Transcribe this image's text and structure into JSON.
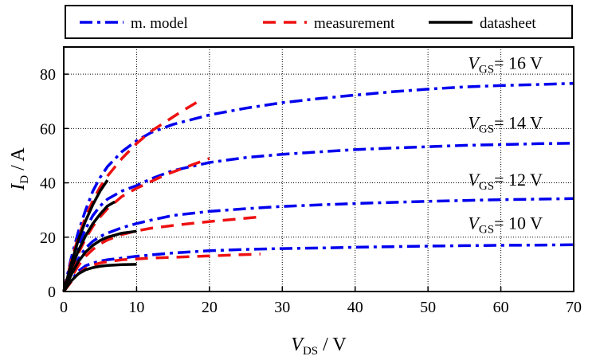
{
  "chart_data": {
    "type": "line",
    "title": "",
    "xlabel": {
      "main": "V",
      "sub": "DS",
      "unit": " / V"
    },
    "ylabel": {
      "main": "I",
      "sub": "D",
      "unit": " / A"
    },
    "xlim": [
      0,
      70
    ],
    "ylim": [
      0,
      90
    ],
    "xticks": [
      0,
      10,
      20,
      30,
      40,
      50,
      60,
      70
    ],
    "yticks": [
      0,
      20,
      40,
      60,
      80
    ],
    "grid": true,
    "legend_position": "top",
    "legend": [
      {
        "name": "m. model",
        "color": "#0000ee",
        "dash": "dashdot"
      },
      {
        "name": "measurement",
        "color": "#ee1111",
        "dash": "dashed"
      },
      {
        "name": "datasheet",
        "color": "#000000",
        "dash": "solid"
      }
    ],
    "annotations": [
      {
        "main": "V",
        "sub": "GS",
        "rest": "= 16 V",
        "x": 55.5,
        "y": 82
      },
      {
        "main": "V",
        "sub": "GS",
        "rest": "= 14 V",
        "x": 55.5,
        "y": 60
      },
      {
        "main": "V",
        "sub": "GS",
        "rest": "= 12 V",
        "x": 55.5,
        "y": 39
      },
      {
        "main": "V",
        "sub": "GS",
        "rest": "= 10 V",
        "x": 55.5,
        "y": 23
      }
    ],
    "series": [
      {
        "name": "m. model",
        "group": "16 V",
        "kind": "model",
        "x": [
          0,
          1,
          2,
          3,
          4,
          5,
          6,
          8,
          10,
          12,
          15,
          20,
          25,
          30,
          35,
          40,
          45,
          50,
          55,
          60,
          65,
          70
        ],
        "y": [
          0,
          12,
          22,
          30,
          37,
          42,
          46,
          51.5,
          55.5,
          58.5,
          61.5,
          65,
          67.5,
          69.5,
          71,
          72.3,
          73.5,
          74.5,
          75.3,
          75.8,
          76.2,
          76.6
        ]
      },
      {
        "name": "m. model",
        "group": "14 V",
        "kind": "model",
        "x": [
          0,
          1,
          2,
          3,
          4,
          5,
          6,
          8,
          10,
          12,
          15,
          20,
          25,
          30,
          35,
          40,
          45,
          50,
          55,
          60,
          65,
          70
        ],
        "y": [
          0,
          9,
          17,
          23,
          28,
          31.5,
          34,
          37,
          39,
          41.5,
          44.5,
          47.5,
          49.3,
          50.5,
          51.4,
          52.2,
          52.8,
          53.3,
          53.8,
          54.1,
          54.4,
          54.6
        ]
      },
      {
        "name": "m. model",
        "group": "12 V",
        "kind": "model",
        "x": [
          0,
          1,
          2,
          3,
          4,
          5,
          6,
          8,
          10,
          12,
          15,
          20,
          25,
          30,
          35,
          40,
          45,
          50,
          55,
          60,
          65,
          70
        ],
        "y": [
          0,
          6.5,
          12,
          16,
          18.5,
          20.3,
          21.5,
          23.5,
          25,
          26.3,
          28,
          29.5,
          30.5,
          31.3,
          31.9,
          32.4,
          32.8,
          33.2,
          33.5,
          33.8,
          34,
          34.2
        ]
      },
      {
        "name": "m. model",
        "group": "10 V",
        "kind": "model",
        "x": [
          0,
          1,
          2,
          3,
          4,
          5,
          6,
          8,
          10,
          15,
          20,
          25,
          30,
          35,
          40,
          45,
          50,
          55,
          60,
          65,
          70
        ],
        "y": [
          0,
          4,
          7.5,
          9.5,
          10.5,
          11.2,
          11.7,
          12.3,
          13,
          14.2,
          15,
          15.5,
          15.8,
          16,
          16.3,
          16.5,
          16.7,
          16.9,
          17,
          17.1,
          17.2
        ]
      },
      {
        "name": "measurement",
        "group": "16 V",
        "kind": "meas",
        "x": [
          0,
          1,
          2,
          3,
          4,
          5,
          6,
          8,
          10,
          12,
          14,
          16,
          18.5
        ],
        "y": [
          0,
          11,
          20,
          27.5,
          33.5,
          38.5,
          42.5,
          49,
          54.5,
          59,
          62.5,
          66,
          70
        ]
      },
      {
        "name": "measurement",
        "group": "14 V",
        "kind": "meas",
        "x": [
          0,
          1,
          2,
          3,
          4,
          5,
          6,
          8,
          10,
          12,
          14,
          16,
          18,
          20
        ],
        "y": [
          0,
          7.5,
          14,
          19.5,
          24,
          27.5,
          30.5,
          35,
          38,
          40.5,
          43,
          45,
          47,
          49
        ]
      },
      {
        "name": "measurement",
        "group": "12 V",
        "kind": "meas",
        "x": [
          0,
          1,
          2,
          3,
          4,
          5,
          6,
          8,
          10,
          12,
          15,
          18,
          21,
          24,
          27
        ],
        "y": [
          0,
          5,
          9.5,
          13,
          15.5,
          17.5,
          19,
          21,
          22.3,
          23.3,
          24.3,
          25.2,
          26,
          26.7,
          27.5
        ]
      },
      {
        "name": "measurement",
        "group": "10 V",
        "kind": "meas",
        "x": [
          0,
          1,
          2,
          3,
          4,
          5,
          6,
          8,
          10,
          12,
          15,
          18,
          21,
          24,
          27
        ],
        "y": [
          0,
          3.5,
          6.5,
          8.5,
          9.7,
          10.5,
          11,
          11.7,
          12,
          12.3,
          12.6,
          12.9,
          13.2,
          13.5,
          13.8
        ]
      },
      {
        "name": "datasheet",
        "group": "16 V",
        "kind": "ds",
        "x": [
          0,
          0.5,
          1,
          2,
          3,
          4,
          5,
          6
        ],
        "y": [
          0,
          5,
          10,
          19,
          26,
          32,
          37,
          41
        ]
      },
      {
        "name": "datasheet",
        "group": "14 V",
        "kind": "ds",
        "x": [
          0,
          0.5,
          1,
          2,
          3,
          4,
          5,
          6,
          7
        ],
        "y": [
          0,
          4.5,
          8,
          15,
          20.5,
          25,
          28.5,
          31.5,
          33
        ]
      },
      {
        "name": "datasheet",
        "group": "12 V",
        "kind": "ds",
        "x": [
          0,
          0.5,
          1,
          2,
          3,
          4,
          5,
          6,
          8,
          10
        ],
        "y": [
          0,
          3,
          6,
          11,
          14.5,
          17,
          18.8,
          20,
          21.5,
          22.2
        ]
      },
      {
        "name": "datasheet",
        "group": "10 V",
        "kind": "ds",
        "x": [
          0,
          0.5,
          1,
          2,
          3,
          4,
          5,
          6,
          8,
          10
        ],
        "y": [
          0,
          2,
          3.8,
          6.5,
          8,
          8.8,
          9.3,
          9.6,
          9.9,
          10
        ]
      }
    ]
  }
}
